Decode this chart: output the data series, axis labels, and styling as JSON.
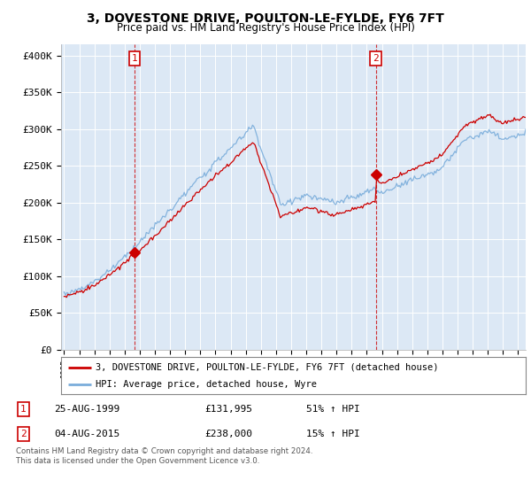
{
  "title": "3, DOVESTONE DRIVE, POULTON-LE-FYLDE, FY6 7FT",
  "subtitle": "Price paid vs. HM Land Registry's House Price Index (HPI)",
  "legend_line1": "3, DOVESTONE DRIVE, POULTON-LE-FYLDE, FY6 7FT (detached house)",
  "legend_line2": "HPI: Average price, detached house, Wyre",
  "annotation1_date": "25-AUG-1999",
  "annotation1_price": "£131,995",
  "annotation1_hpi": "51% ↑ HPI",
  "annotation2_date": "04-AUG-2015",
  "annotation2_price": "£238,000",
  "annotation2_hpi": "15% ↑ HPI",
  "footnote": "Contains HM Land Registry data © Crown copyright and database right 2024.\nThis data is licensed under the Open Government Licence v3.0.",
  "hpi_color": "#7aaddb",
  "price_color": "#cc0000",
  "bg_color": "#dce8f5",
  "grid_color": "#ffffff",
  "ylim": [
    0,
    415000
  ],
  "yticks": [
    0,
    50000,
    100000,
    150000,
    200000,
    250000,
    300000,
    350000,
    400000
  ],
  "ytick_labels": [
    "£0",
    "£50K",
    "£100K",
    "£150K",
    "£200K",
    "£250K",
    "£300K",
    "£350K",
    "£400K"
  ],
  "sale1_x": 1999.65,
  "sale1_y": 131995,
  "sale2_x": 2015.59,
  "sale2_y": 238000,
  "xmin": 1994.8,
  "xmax": 2025.5
}
